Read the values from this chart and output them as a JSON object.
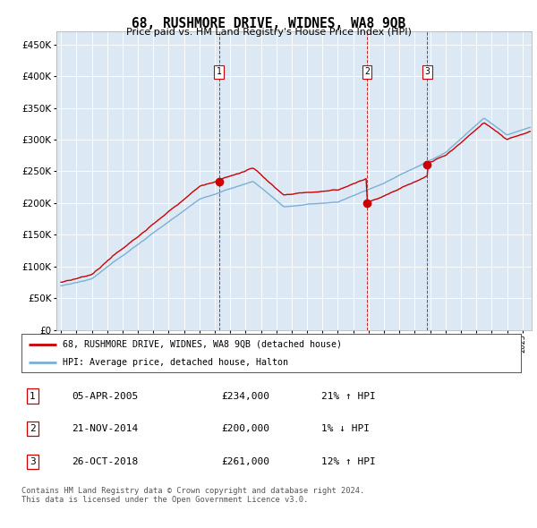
{
  "title": "68, RUSHMORE DRIVE, WIDNES, WA8 9QB",
  "subtitle": "Price paid vs. HM Land Registry's House Price Index (HPI)",
  "ylim": [
    0,
    470000
  ],
  "yticks": [
    0,
    50000,
    100000,
    150000,
    200000,
    250000,
    300000,
    350000,
    400000,
    450000
  ],
  "bg_color": "#dce9f5",
  "sale_years_float": [
    2005.27,
    2014.9,
    2018.82
  ],
  "sale_prices": [
    234000,
    200000,
    261000
  ],
  "sale_labels": [
    "1",
    "2",
    "3"
  ],
  "legend_line1": "68, RUSHMORE DRIVE, WIDNES, WA8 9QB (detached house)",
  "legend_line2": "HPI: Average price, detached house, Halton",
  "table_rows": [
    [
      "1",
      "05-APR-2005",
      "£234,000",
      "21% ↑ HPI"
    ],
    [
      "2",
      "21-NOV-2014",
      "£200,000",
      "1% ↓ HPI"
    ],
    [
      "3",
      "26-OCT-2018",
      "£261,000",
      "12% ↑ HPI"
    ]
  ],
  "footer": "Contains HM Land Registry data © Crown copyright and database right 2024.\nThis data is licensed under the Open Government Licence v3.0.",
  "red_color": "#cc0000",
  "blue_color": "#7ab0d4"
}
